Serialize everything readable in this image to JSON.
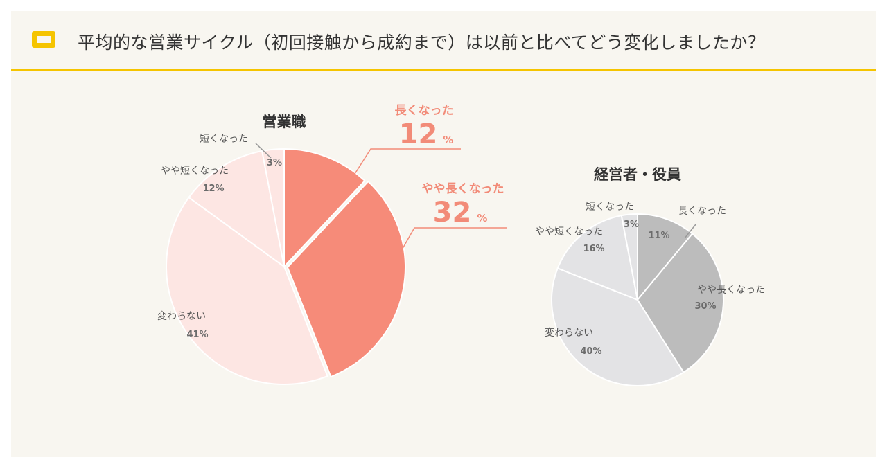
{
  "header": {
    "title": "平均的な営業サイクル（初回接触から成約まで）は以前と比べてどう変化しましたか？",
    "icon": "book-icon"
  },
  "colors": {
    "accent": "#f5c400",
    "highlight": "#f28b78",
    "sales_slices": [
      "#f68b79",
      "#f68b79",
      "#fde6e3",
      "#fde6e3",
      "#fde6e3"
    ],
    "exec_slices": [
      "#bcbcbc",
      "#bcbcbc",
      "#e3e3e5",
      "#e3e3e5",
      "#e3e3e5"
    ]
  },
  "chart_data": [
    {
      "type": "pie",
      "title": "営業職",
      "categories": [
        "長くなった",
        "やや長くなった",
        "変わらない",
        "やや短くなった",
        "短くなった"
      ],
      "values": [
        12,
        32,
        41,
        12,
        3
      ],
      "value_labels": [
        "12",
        "32",
        "41%",
        "12%",
        "3%"
      ],
      "unit": "%",
      "highlighted": [
        "長くなった",
        "やや長くなった"
      ]
    },
    {
      "type": "pie",
      "title": "経営者・役員",
      "categories": [
        "長くなった",
        "やや長くなった",
        "変わらない",
        "やや短くなった",
        "短くなった"
      ],
      "values": [
        11,
        30,
        40,
        16,
        3
      ],
      "value_labels": [
        "11%",
        "30%",
        "40%",
        "16%",
        "3%"
      ],
      "unit": "%"
    }
  ]
}
